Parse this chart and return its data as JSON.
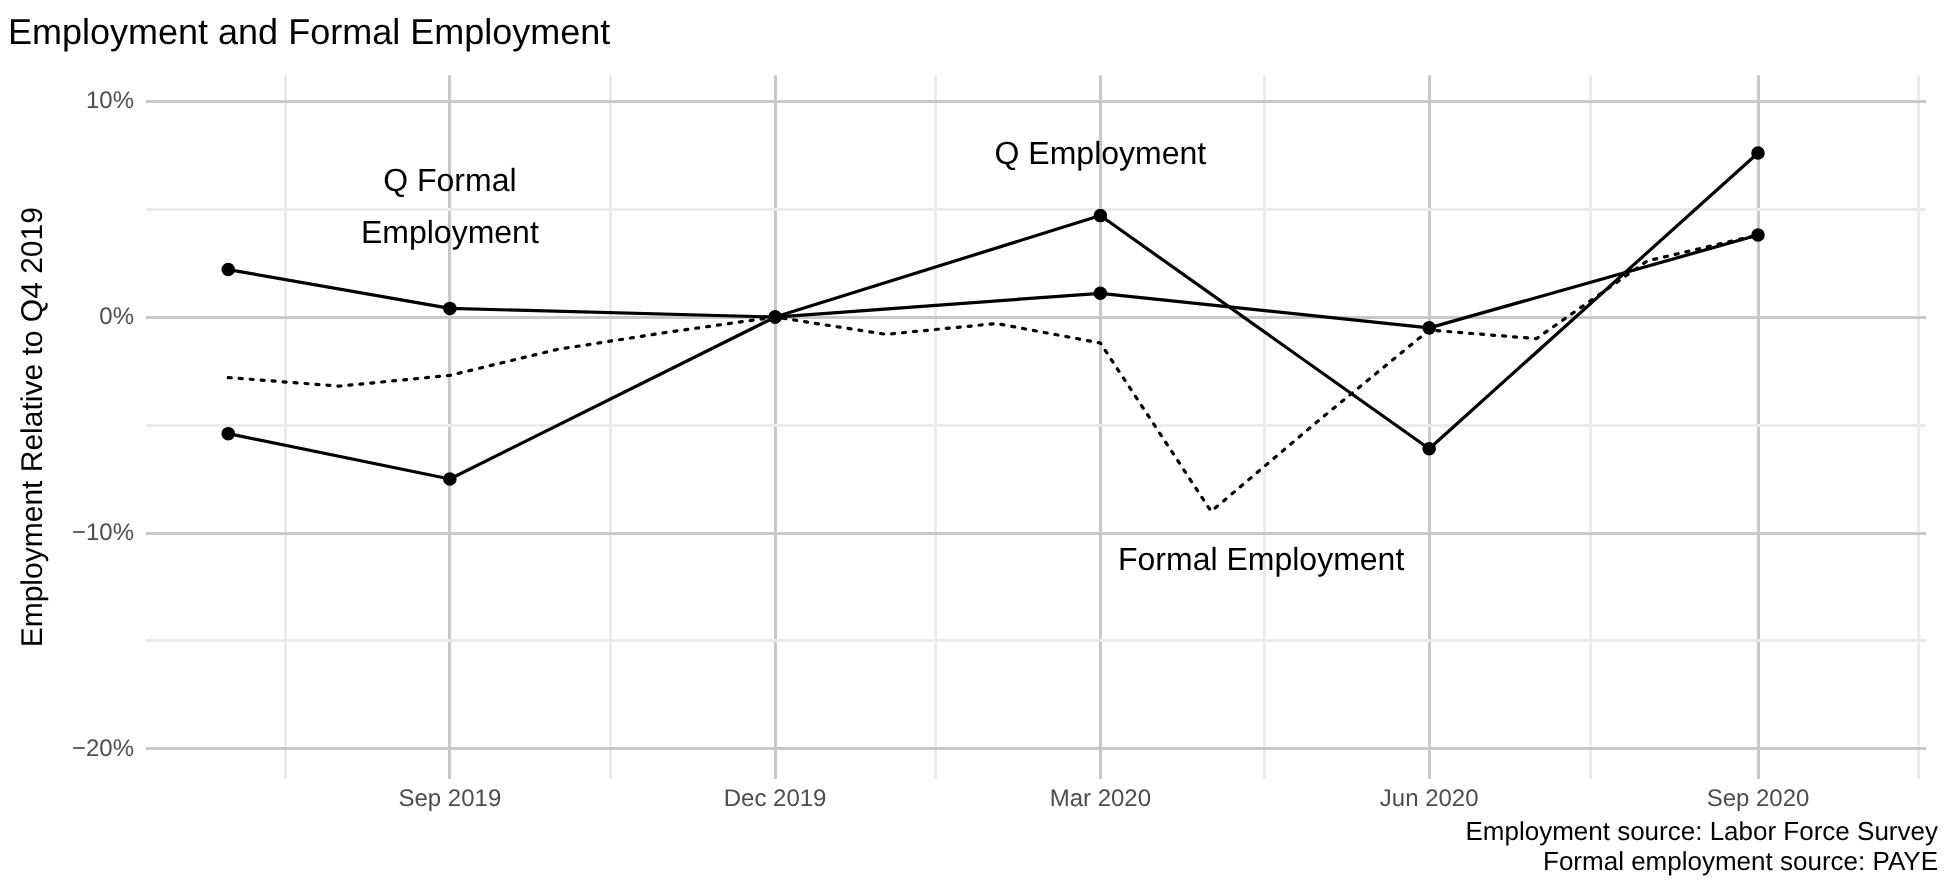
{
  "chart_data": {
    "type": "line",
    "title": "Employment and Formal Employment",
    "ylabel": "Employment Relative to Q4 2019",
    "series": [
      {
        "name": "Q Employment",
        "color": "#000000",
        "line_style": "solid",
        "marker": "circle",
        "x": [
          "2019-07-01",
          "2019-09-01",
          "2019-12-01",
          "2020-03-01",
          "2020-06-01",
          "2020-09-01"
        ],
        "values": [
          -5.4,
          -7.5,
          0,
          4.7,
          -6.1,
          7.6
        ]
      },
      {
        "name": "Q Formal Employment",
        "color": "#000000",
        "line_style": "solid",
        "marker": "circle",
        "x": [
          "2019-07-01",
          "2019-09-01",
          "2019-12-01",
          "2020-03-01",
          "2020-06-01",
          "2020-09-01"
        ],
        "values": [
          2.2,
          0.4,
          0,
          1.1,
          -0.5,
          3.8
        ]
      },
      {
        "name": "Formal Employment",
        "color": "#000000",
        "line_style": "dotted",
        "marker": "none",
        "x": [
          "2019-07-01",
          "2019-08-01",
          "2019-09-01",
          "2019-10-01",
          "2019-11-01",
          "2019-12-01",
          "2020-01-01",
          "2020-02-01",
          "2020-03-01",
          "2020-04-01",
          "2020-05-01",
          "2020-06-01",
          "2020-07-01",
          "2020-08-01",
          "2020-09-01"
        ],
        "values": [
          -2.8,
          -3.2,
          -2.7,
          -1.5,
          -0.7,
          0,
          -0.8,
          -0.3,
          -1.2,
          -9.0,
          -4.8,
          -0.6,
          -1.0,
          2.6,
          3.8
        ]
      }
    ],
    "xlim": [
      "2019-06-08",
      "2020-10-18"
    ],
    "xticks": [
      {
        "value": "2019-07-17",
        "label": null
      },
      {
        "value": "2019-09-01",
        "label": "Sep 2019"
      },
      {
        "value": "2019-10-16",
        "label": null
      },
      {
        "value": "2019-12-01",
        "label": "Dec 2019"
      },
      {
        "value": "2020-01-15",
        "label": null
      },
      {
        "value": "2020-03-01",
        "label": "Mar 2020"
      },
      {
        "value": "2020-04-16",
        "label": null
      },
      {
        "value": "2020-06-01",
        "label": "Jun 2020"
      },
      {
        "value": "2020-07-16",
        "label": null
      },
      {
        "value": "2020-09-01",
        "label": "Sep 2020"
      },
      {
        "value": "2020-10-16",
        "label": null
      }
    ],
    "ylim": [
      -21.4,
      11.2
    ],
    "yticks": [
      {
        "value": -20,
        "label": "−20%"
      },
      {
        "value": -15,
        "label": null
      },
      {
        "value": -10,
        "label": "−10%"
      },
      {
        "value": -5,
        "label": null
      },
      {
        "value": 0,
        "label": "0%"
      },
      {
        "value": 5,
        "label": null
      },
      {
        "value": 10,
        "label": "10%"
      }
    ],
    "grid": true,
    "legend": false,
    "annotations": [
      "Employment source: Labor Force Survey",
      "Formal employment source: PAYE"
    ]
  }
}
